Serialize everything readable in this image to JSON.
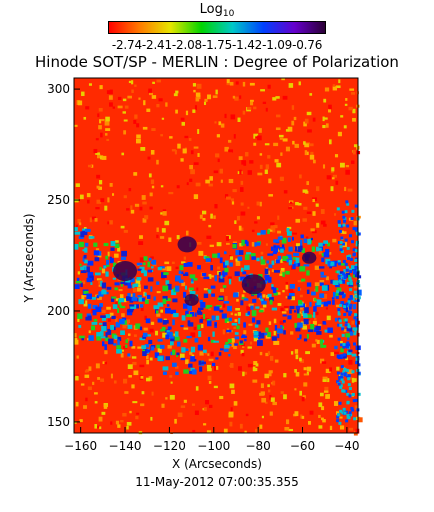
{
  "colorbar": {
    "title": "Log",
    "title_sub": "10",
    "tick_text": "-2.74-2.41-2.08-1.75-1.42-1.09-0.76",
    "ticks": [
      -2.74,
      -2.41,
      -2.08,
      -1.75,
      -1.42,
      -1.09,
      -0.76
    ],
    "colors": [
      "#ff0000",
      "#ff7a00",
      "#e6e600",
      "#00d400",
      "#00c8c8",
      "#0040ff",
      "#6600cc",
      "#2a0033"
    ]
  },
  "map": {
    "title": "Hinode SOT/SP - MERLIN : Degree of Polarization",
    "xlabel": "X (Arcseconds)",
    "ylabel": "Y (Arcseconds)",
    "timestamp": "11-May-2012 07:00:35.355",
    "xlim": [
      -163,
      -35
    ],
    "ylim": [
      145,
      305
    ],
    "xticks": [
      -160,
      -140,
      -120,
      -100,
      -80,
      -60,
      -40
    ],
    "yticks": [
      150,
      200,
      250,
      300
    ]
  }
}
